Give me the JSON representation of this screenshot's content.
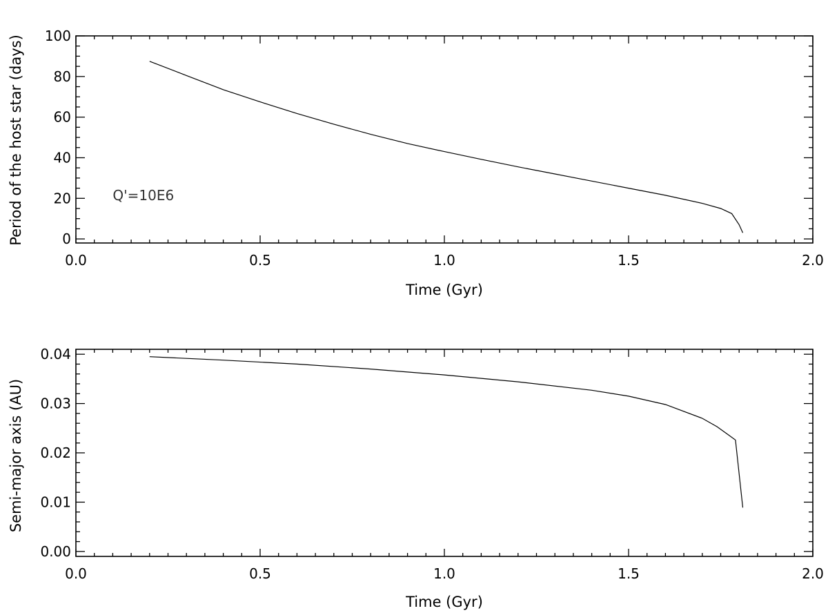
{
  "chart_data": [
    {
      "type": "line",
      "title": "",
      "xlabel": "Time (Gyr)",
      "ylabel": "Period of the host star (days)",
      "xlim": [
        0.0,
        2.0
      ],
      "ylim": [
        -2,
        100
      ],
      "x_ticks": [
        0.0,
        0.5,
        1.0,
        1.5,
        2.0
      ],
      "x_tick_labels": [
        "0.0",
        "0.5",
        "1.0",
        "1.5",
        "2.0"
      ],
      "x_minor_step": 0.05,
      "y_ticks": [
        0,
        20,
        40,
        60,
        80,
        100
      ],
      "y_tick_labels": [
        "0",
        "20",
        "40",
        "60",
        "80",
        "100"
      ],
      "y_minor_step": 5,
      "grid": false,
      "annotations": [
        {
          "text": "Q'=10E6",
          "x": 0.1,
          "y": 19
        }
      ],
      "series": [
        {
          "x": [
            0.2,
            0.3,
            0.4,
            0.5,
            0.6,
            0.7,
            0.8,
            0.9,
            1.0,
            1.1,
            1.2,
            1.3,
            1.4,
            1.5,
            1.6,
            1.7,
            1.75,
            1.78,
            1.8,
            1.81
          ],
          "y": [
            87.5,
            80.5,
            73.5,
            67.5,
            61.8,
            56.5,
            51.5,
            47.0,
            43.0,
            39.2,
            35.5,
            32.0,
            28.5,
            25.0,
            21.5,
            17.5,
            15.0,
            12.5,
            7.0,
            3.0
          ]
        }
      ]
    },
    {
      "type": "line",
      "title": "",
      "xlabel": "Time (Gyr)",
      "ylabel": "Semi-major axis (AU)",
      "xlim": [
        0.0,
        2.0
      ],
      "ylim": [
        -0.001,
        0.041
      ],
      "x_ticks": [
        0.0,
        0.5,
        1.0,
        1.5,
        2.0
      ],
      "x_tick_labels": [
        "0.0",
        "0.5",
        "1.0",
        "1.5",
        "2.0"
      ],
      "x_minor_step": 0.05,
      "y_ticks": [
        0.0,
        0.01,
        0.02,
        0.03,
        0.04
      ],
      "y_tick_labels": [
        "0.00",
        "0.01",
        "0.02",
        "0.03",
        "0.04"
      ],
      "y_minor_step": 0.002,
      "grid": false,
      "annotations": [],
      "series": [
        {
          "x": [
            0.2,
            0.4,
            0.6,
            0.8,
            1.0,
            1.2,
            1.4,
            1.5,
            1.6,
            1.7,
            1.74,
            1.77,
            1.79,
            1.81
          ],
          "y": [
            0.0395,
            0.0388,
            0.038,
            0.037,
            0.0358,
            0.0344,
            0.0327,
            0.0315,
            0.0298,
            0.027,
            0.0253,
            0.0237,
            0.0226,
            0.0089
          ]
        }
      ]
    }
  ]
}
